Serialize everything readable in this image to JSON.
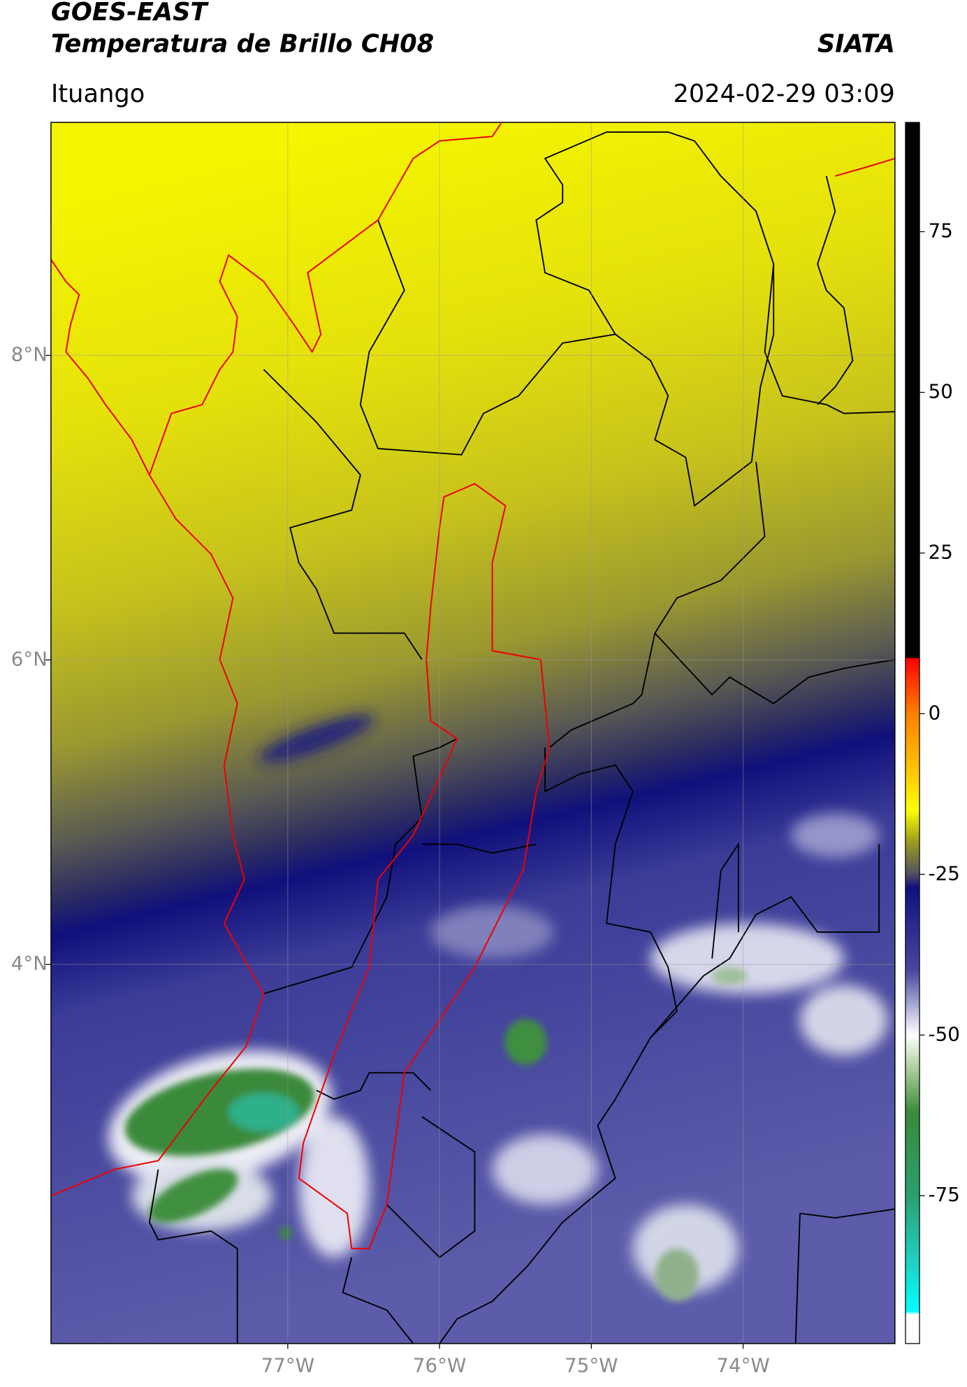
{
  "header": {
    "title_line1": "GOES-EAST",
    "title_line2": "Temperatura de Brillo CH08",
    "org": "SIATA",
    "location": "Ituango",
    "datetime": "2024-02-29 03:09"
  },
  "map": {
    "xlim": [
      -78.56,
      -73.0
    ],
    "ylim": [
      1.51,
      9.53
    ],
    "grid": true,
    "xticks": [
      {
        "value": -77,
        "label": "77°W"
      },
      {
        "value": -76,
        "label": "76°W"
      },
      {
        "value": -75,
        "label": "75°W"
      },
      {
        "value": -74,
        "label": "74°W"
      }
    ],
    "yticks": [
      {
        "value": 4,
        "label": "4°N"
      },
      {
        "value": 6,
        "label": "6°N"
      },
      {
        "value": 8,
        "label": "8°N"
      }
    ]
  },
  "colorbar": {
    "clim": [
      -98,
      92
    ],
    "ticks": [
      75,
      50,
      25,
      0,
      -25,
      -50,
      -75
    ],
    "stops": [
      {
        "value": 92,
        "color": "#000000"
      },
      {
        "value": 8.7,
        "color": "#000000"
      },
      {
        "value": 8.6,
        "color": "#ff0000"
      },
      {
        "value": 0,
        "color": "#ff8000"
      },
      {
        "value": -10,
        "color": "#ffd000"
      },
      {
        "value": -15,
        "color": "#ffff00"
      },
      {
        "value": -20,
        "color": "#9a9a20"
      },
      {
        "value": -25,
        "color": "#505060"
      },
      {
        "value": -27,
        "color": "#101080"
      },
      {
        "value": -40,
        "color": "#4848a0"
      },
      {
        "value": -50,
        "color": "#ffffff"
      },
      {
        "value": -55,
        "color": "#b0d0a0"
      },
      {
        "value": -62,
        "color": "#3a8a3a"
      },
      {
        "value": -75,
        "color": "#2aa070"
      },
      {
        "value": -85,
        "color": "#20d0c0"
      },
      {
        "value": -93,
        "color": "#00ffff"
      },
      {
        "value": -93.5,
        "color": "#ffffff"
      },
      {
        "value": -98,
        "color": "#ffffff"
      }
    ]
  }
}
